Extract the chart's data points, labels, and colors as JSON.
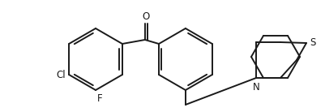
{
  "bg_color": "#ffffff",
  "line_color": "#1a1a1a",
  "line_width": 1.4,
  "font_size": 8.5,
  "figsize": [
    4.02,
    1.38
  ],
  "dpi": 100,
  "xlim": [
    0,
    402
  ],
  "ylim": [
    0,
    138
  ]
}
